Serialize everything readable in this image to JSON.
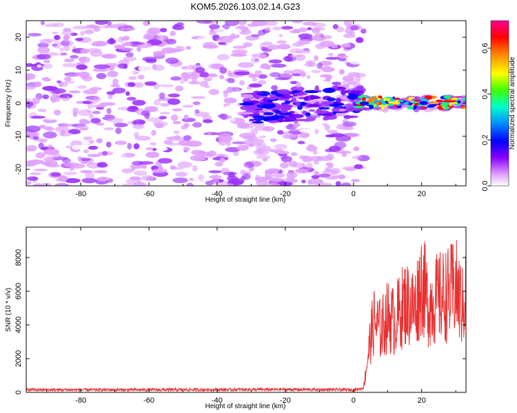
{
  "figure": {
    "title": "KOM5.2026.103.02.14.G23"
  },
  "chart_data": [
    {
      "type": "heatmap",
      "title": "KOM5.2026.103.02.14.G23",
      "xlabel": "Height of straight line (km)",
      "ylabel": "Frequency (Hz)",
      "xlim": [
        -96,
        33
      ],
      "ylim": [
        -25,
        25
      ],
      "x_ticks": [
        -80,
        -60,
        -40,
        -20,
        0,
        20
      ],
      "y_ticks": [
        -20,
        -10,
        0,
        10,
        20
      ],
      "colorbar": {
        "label": "Normalized spectral amplitude",
        "range": [
          0,
          0.72
        ],
        "ticks": [
          0,
          0.2,
          0.4,
          0.6
        ],
        "tick_labels": [
          "0.0",
          "0.2",
          "0.4",
          "0.6"
        ],
        "colormap": [
          "#ffffff",
          "#e0a0ff",
          "#9b30ff",
          "#6a00ff",
          "#0000ff",
          "#00c8ff",
          "#00ff80",
          "#ffff00",
          "#ff8000",
          "#ff0000",
          "#ff00a0"
        ]
      },
      "description_bands": [
        {
          "x_range": [
            -96,
            0
          ],
          "y_range": [
            -25,
            25
          ],
          "level": "low (0.05-0.15), scattered violet"
        },
        {
          "x_range": [
            -30,
            0
          ],
          "y_range": [
            -8,
            5
          ],
          "level": "moderate (0.15-0.3)"
        },
        {
          "x_range": [
            0,
            33
          ],
          "y_range": [
            -2,
            3
          ],
          "level": "high (0.3-0.7) narrow band near 0 Hz"
        }
      ],
      "grid": false
    },
    {
      "type": "line",
      "xlabel": "Height of straight line (km)",
      "ylabel": "SNR (10 * v/v)",
      "xlim": [
        -96,
        33
      ],
      "ylim": [
        0,
        9800
      ],
      "x_ticks": [
        -80,
        -60,
        -40,
        -20,
        0,
        20
      ],
      "y_ticks": [
        0,
        2000,
        4000,
        6000,
        8000
      ],
      "color": "#e83030",
      "series": [
        {
          "x": [
            -96,
            -80,
            -60,
            -40,
            -20,
            -5,
            0,
            2,
            3,
            4,
            5,
            6,
            8,
            10,
            12,
            15,
            18,
            20,
            22,
            25,
            28,
            30,
            32,
            33
          ],
          "values": [
            150,
            150,
            150,
            160,
            170,
            160,
            150,
            200,
            300,
            1800,
            3200,
            4200,
            3700,
            4500,
            4200,
            5300,
            5000,
            6600,
            5200,
            5600,
            5800,
            6200,
            5000,
            6000
          ]
        }
      ],
      "grid": false
    }
  ]
}
